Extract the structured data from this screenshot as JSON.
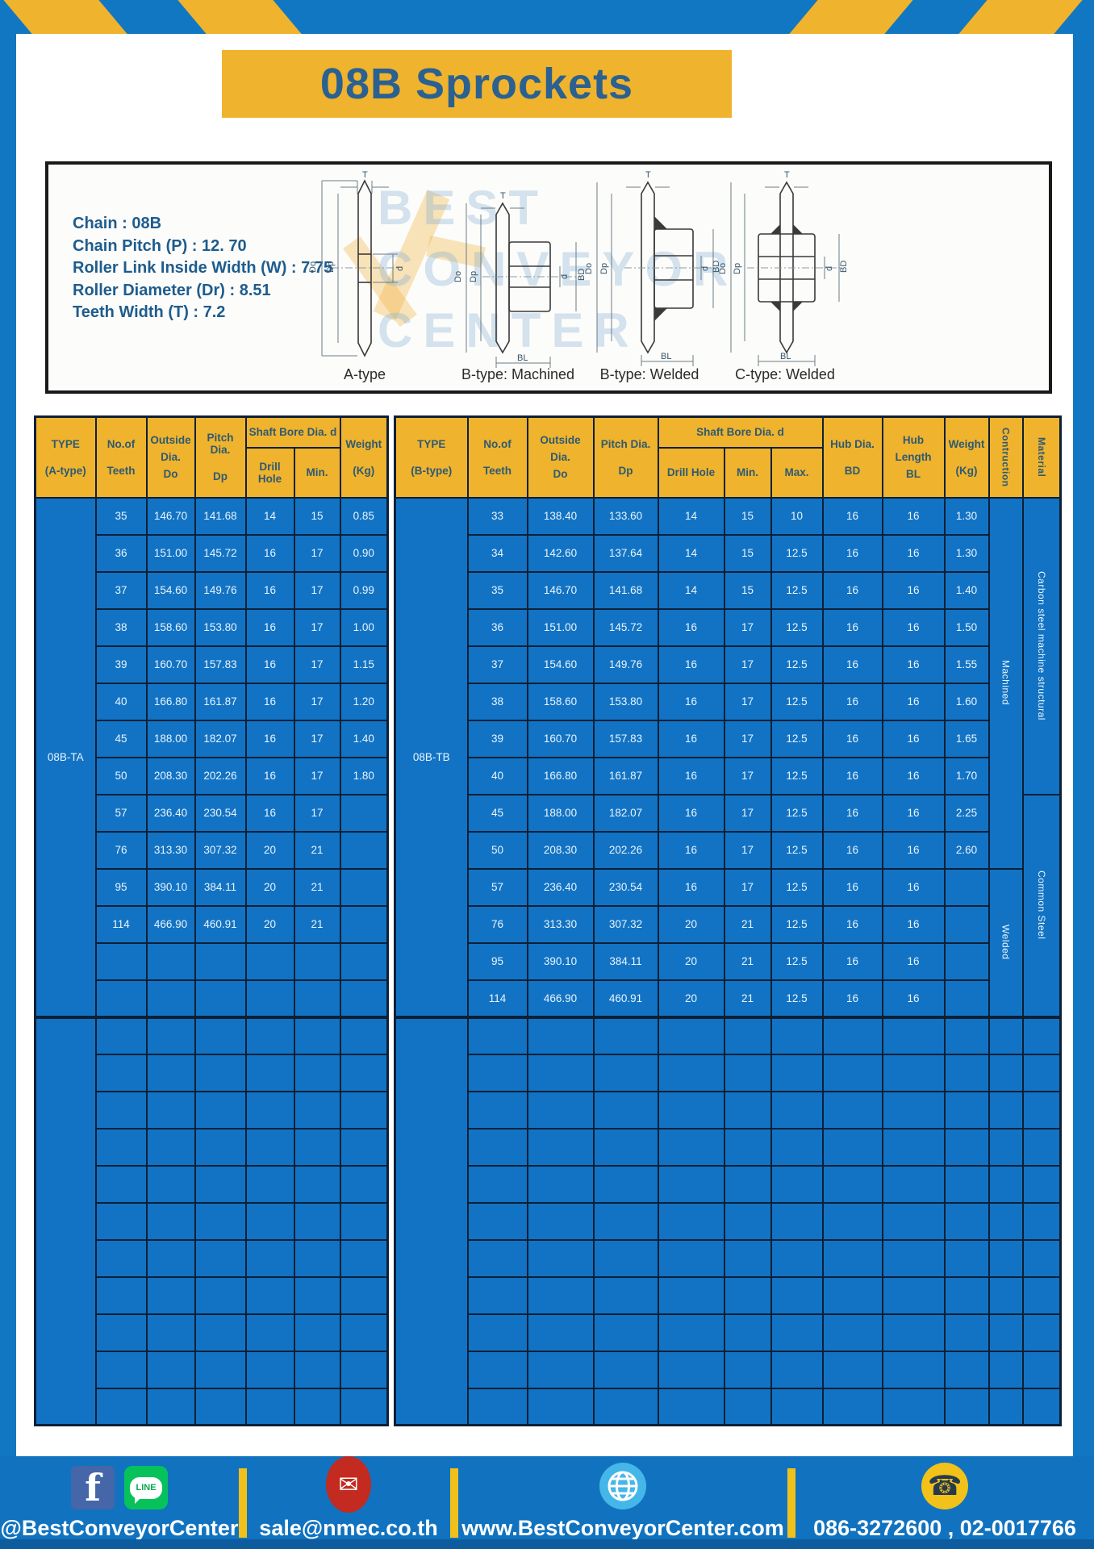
{
  "page": {
    "title": "08B Sprockets"
  },
  "specs": [
    "Chain  : 08B",
    "Chain Pitch (P)  :  12. 70",
    "Roller Link Inside Width (W)  :  7.75",
    "Roller Diameter (Dr)  : 8.51",
    "Teeth Width (T)  :  7.2"
  ],
  "diagram": {
    "captions": [
      "A-type",
      "B-type: Machined",
      "B-type: Welded",
      "C-type: Welded"
    ],
    "watermark": "BEST\nCONVEYOR\nCENTER",
    "dim_labels": {
      "t": "T",
      "dout": "Do",
      "dp": "Dp",
      "d": "d",
      "bd": "BD",
      "bl": "BL"
    }
  },
  "left_table": {
    "headers": {
      "type": [
        "TYPE",
        "(A-type)"
      ],
      "teeth": [
        "No.of",
        "Teeth"
      ],
      "outside": [
        "Outside",
        "Dia.",
        "Do"
      ],
      "pitch": [
        "Pitch Dia.",
        "Dp"
      ],
      "shaft_bore": "Shaft Bore Dia. d",
      "drill": "Drill Hole",
      "min": "Min.",
      "weight": [
        "Weight",
        "(Kg)"
      ]
    },
    "type_label": "08B-TA",
    "rows": [
      [
        "35",
        "146.70",
        "141.68",
        "14",
        "15",
        "0.85"
      ],
      [
        "36",
        "151.00",
        "145.72",
        "16",
        "17",
        "0.90"
      ],
      [
        "37",
        "154.60",
        "149.76",
        "16",
        "17",
        "0.99"
      ],
      [
        "38",
        "158.60",
        "153.80",
        "16",
        "17",
        "1.00"
      ],
      [
        "39",
        "160.70",
        "157.83",
        "16",
        "17",
        "1.15"
      ],
      [
        "40",
        "166.80",
        "161.87",
        "16",
        "17",
        "1.20"
      ],
      [
        "45",
        "188.00",
        "182.07",
        "16",
        "17",
        "1.40"
      ],
      [
        "50",
        "208.30",
        "202.26",
        "16",
        "17",
        "1.80"
      ],
      [
        "57",
        "236.40",
        "230.54",
        "16",
        "17",
        ""
      ],
      [
        "76",
        "313.30",
        "307.32",
        "20",
        "21",
        ""
      ],
      [
        "95",
        "390.10",
        "384.11",
        "20",
        "21",
        ""
      ],
      [
        "114",
        "466.90",
        "460.91",
        "20",
        "21",
        ""
      ]
    ],
    "empty_rows_section1": 2,
    "empty_rows_section2": 11
  },
  "right_table": {
    "headers": {
      "type": [
        "TYPE",
        "(B-type)"
      ],
      "teeth": [
        "No.of",
        "Teeth"
      ],
      "outside": [
        "Outside",
        "Dia.",
        "Do"
      ],
      "pitch": [
        "Pitch Dia.",
        "Dp"
      ],
      "shaft_bore": "Shaft Bore Dia. d",
      "drill": "Drill Hole",
      "min": "Min.",
      "max": "Max.",
      "hub_dia": [
        "Hub Dia.",
        "BD"
      ],
      "hub_len": [
        "Hub",
        "Length",
        "BL"
      ],
      "weight": [
        "Weight",
        "(Kg)"
      ],
      "construction": "Contruction",
      "material": "Material"
    },
    "type_label": "08B-TB",
    "rows": [
      [
        "33",
        "138.40",
        "133.60",
        "14",
        "15",
        "10",
        "16",
        "16",
        "1.30"
      ],
      [
        "34",
        "142.60",
        "137.64",
        "14",
        "15",
        "12.5",
        "16",
        "16",
        "1.30"
      ],
      [
        "35",
        "146.70",
        "141.68",
        "14",
        "15",
        "12.5",
        "16",
        "16",
        "1.40"
      ],
      [
        "36",
        "151.00",
        "145.72",
        "16",
        "17",
        "12.5",
        "16",
        "16",
        "1.50"
      ],
      [
        "37",
        "154.60",
        "149.76",
        "16",
        "17",
        "12.5",
        "16",
        "16",
        "1.55"
      ],
      [
        "38",
        "158.60",
        "153.80",
        "16",
        "17",
        "12.5",
        "16",
        "16",
        "1.60"
      ],
      [
        "39",
        "160.70",
        "157.83",
        "16",
        "17",
        "12.5",
        "16",
        "16",
        "1.65"
      ],
      [
        "40",
        "166.80",
        "161.87",
        "16",
        "17",
        "12.5",
        "16",
        "16",
        "1.70"
      ],
      [
        "45",
        "188.00",
        "182.07",
        "16",
        "17",
        "12.5",
        "16",
        "16",
        "2.25"
      ],
      [
        "50",
        "208.30",
        "202.26",
        "16",
        "17",
        "12.5",
        "16",
        "16",
        "2.60"
      ],
      [
        "57",
        "236.40",
        "230.54",
        "16",
        "17",
        "12.5",
        "16",
        "16",
        ""
      ],
      [
        "76",
        "313.30",
        "307.32",
        "20",
        "21",
        "12.5",
        "16",
        "16",
        ""
      ],
      [
        "95",
        "390.10",
        "384.11",
        "20",
        "21",
        "12.5",
        "16",
        "16",
        ""
      ],
      [
        "114",
        "466.90",
        "460.91",
        "20",
        "21",
        "12.5",
        "16",
        "16",
        ""
      ]
    ],
    "construction_groups": [
      {
        "label": "Machined",
        "span": 10
      },
      {
        "label": "Welded",
        "span": 4
      }
    ],
    "material_groups": [
      {
        "label": "Carbon steel  machine structural",
        "span": 8
      },
      {
        "label": "Common  Steel",
        "span": 6
      }
    ],
    "empty_rows_section2": 11
  },
  "footer": {
    "facebook_label": "@BestConveyorCenter",
    "email": "sale@nmec.co.th",
    "website": "www.BestConveyorCenter.com",
    "phones": "086-3272600 , 02-0017766",
    "icons": {
      "facebook": "f",
      "line": "LINE",
      "mail": "✉",
      "phone": "☎"
    }
  },
  "colors": {
    "frame_blue": "#1277c2",
    "cell_blue": "#1273c4",
    "header_yellow": "#efb32d",
    "grid_navy": "#0c2036",
    "title_text": "#2a6191",
    "footer_divider": "#f0c11a"
  }
}
